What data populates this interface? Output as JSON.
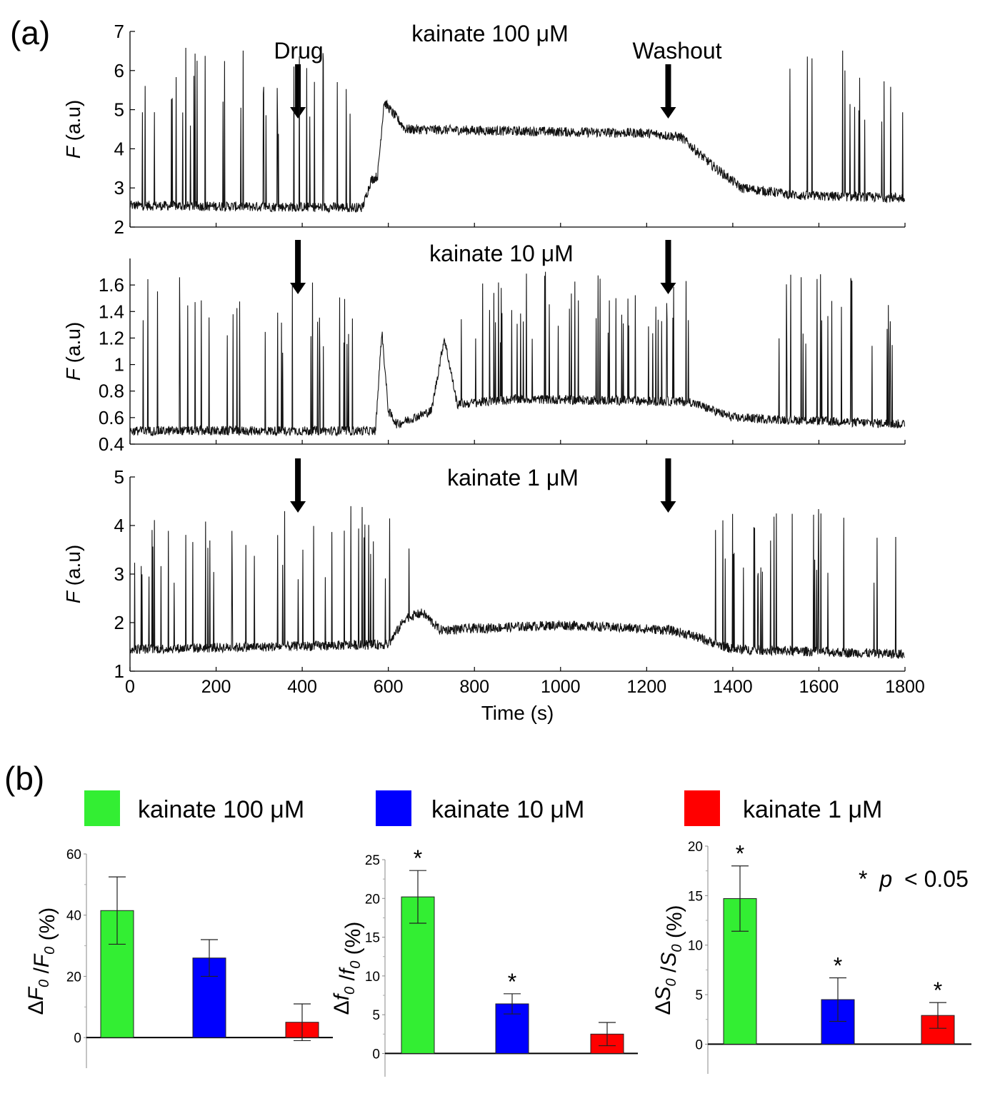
{
  "panel_a": {
    "label": "(a)",
    "arrow_labels": {
      "drug": "Drug",
      "washout": "Washout"
    },
    "arrow_times_s": {
      "drug": 390,
      "washout": 1250
    }
  },
  "panel_b": {
    "label": "(b)",
    "legend": [
      {
        "label": "kainate 100 μM",
        "color": "#33ee33"
      },
      {
        "label": "kainate 10 μM",
        "color": "#0000ff"
      },
      {
        "label": "kainate 1 μM",
        "color": "#ff0000"
      }
    ],
    "significance_note": {
      "symbol": "*",
      "p": "p",
      "rest": "< 0.05"
    }
  },
  "chart_data": [
    {
      "type": "line",
      "title": "kainate    100 μM",
      "ylabel": "F (a.u)",
      "xlabel": "",
      "xlim": [
        0,
        1800
      ],
      "ylim": [
        2,
        7
      ],
      "yticks": [
        "2",
        "3",
        "4",
        "5",
        "6",
        "7"
      ],
      "description_profile": {
        "x": [
          0,
          540,
          560,
          575,
          590,
          640,
          1200,
          1280,
          1350,
          1420,
          1560,
          1800
        ],
        "y": [
          2.55,
          2.5,
          3.2,
          3.3,
          5.2,
          4.5,
          4.4,
          4.3,
          3.6,
          3.0,
          2.8,
          2.75
        ]
      },
      "spike_region_s": [
        [
          5,
          535
        ],
        [
          1520,
          1800
        ]
      ],
      "max_spike_height": 6.6
    },
    {
      "type": "line",
      "title": "kainate    10 μM",
      "ylabel": "F (a.u)",
      "xlabel": "",
      "xlim": [
        0,
        1800
      ],
      "ylim": [
        0.4,
        1.8
      ],
      "yticks": [
        "0.4",
        "0.6",
        "0.8",
        "1",
        "1.2",
        "1.4",
        "1.6"
      ],
      "description_profile": {
        "x": [
          0,
          570,
          585,
          600,
          620,
          700,
          730,
          760,
          900,
          1300,
          1400,
          1800
        ],
        "y": [
          0.5,
          0.5,
          1.25,
          0.65,
          0.55,
          0.65,
          1.2,
          0.7,
          0.74,
          0.72,
          0.6,
          0.55
        ]
      },
      "spike_region_s": [
        [
          20,
          560
        ],
        [
          760,
          1350
        ],
        [
          1500,
          1780
        ]
      ],
      "max_spike_height": 1.7
    },
    {
      "type": "line",
      "title": "kainate    1 μM",
      "ylabel": "F (a.u)",
      "xlabel": "Time (s)",
      "xlim": [
        0,
        1800
      ],
      "ylim": [
        1,
        5
      ],
      "yticks": [
        "1",
        "2",
        "3",
        "4",
        "5"
      ],
      "xticks": [
        "0",
        "200",
        "400",
        "600",
        "800",
        "1000",
        "1200",
        "1400",
        "1600",
        "1800"
      ],
      "description_profile": {
        "x": [
          0,
          600,
          640,
          680,
          720,
          1000,
          1250,
          1300,
          1400,
          1800
        ],
        "y": [
          1.45,
          1.55,
          2.1,
          2.2,
          1.85,
          1.95,
          1.85,
          1.75,
          1.45,
          1.35
        ]
      },
      "spike_region_s": [
        [
          10,
          660
        ],
        [
          1330,
          1780
        ]
      ],
      "max_spike_height": 4.4
    },
    {
      "type": "bar",
      "ylabel_main": "ΔF",
      "ylabel_sub": "0",
      "ylabel_div": " /F",
      "ylabel_end": " (%)",
      "categories": [
        "kainate 100 μM",
        "kainate 10 μM",
        "kainate 1 μM"
      ],
      "values": [
        41.5,
        26,
        5
      ],
      "errors": [
        11,
        6,
        6
      ],
      "significant": [
        false,
        false,
        false
      ],
      "ylim": [
        -10,
        60
      ],
      "yticks": [
        0,
        20,
        40,
        60
      ],
      "ytick_labels": [
        "0",
        "20",
        "40",
        "60"
      ]
    },
    {
      "type": "bar",
      "ylabel_main": "Δf",
      "ylabel_sub": "0",
      "ylabel_div": " /f",
      "ylabel_end": " (%)",
      "categories": [
        "kainate 100 μM",
        "kainate 10 μM",
        "kainate 1 μM"
      ],
      "values": [
        20.2,
        6.4,
        2.5
      ],
      "errors": [
        3.4,
        1.3,
        1.5
      ],
      "significant": [
        true,
        true,
        false
      ],
      "star": "*",
      "ylim": [
        -3,
        25
      ],
      "yticks": [
        0,
        5,
        10,
        15,
        20,
        25
      ],
      "ytick_labels": [
        "0",
        "5",
        "10",
        "15",
        "20",
        "25"
      ]
    },
    {
      "type": "bar",
      "ylabel_main": "ΔS",
      "ylabel_sub": "0",
      "ylabel_div": " /S",
      "ylabel_end": " (%)",
      "categories": [
        "kainate 100 μM",
        "kainate 10 μM",
        "kainate 1 μM"
      ],
      "values": [
        14.7,
        4.5,
        2.9
      ],
      "errors": [
        3.3,
        2.2,
        1.3
      ],
      "significant": [
        true,
        true,
        true
      ],
      "star": "*",
      "ylim": [
        -3,
        20
      ],
      "yticks": [
        0,
        5,
        10,
        15,
        20
      ],
      "ytick_labels": [
        "0",
        "5",
        "10",
        "15",
        "20"
      ]
    }
  ]
}
